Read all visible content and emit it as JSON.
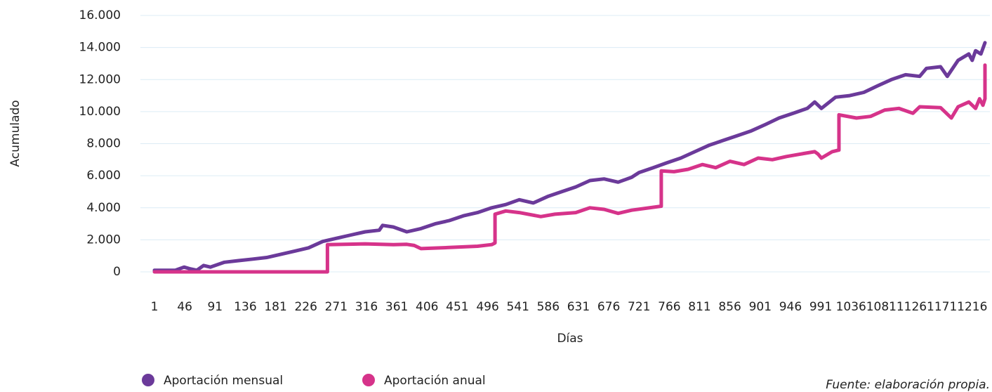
{
  "chart_data": {
    "type": "line",
    "y_label": "Acumulado",
    "x_label": "Días",
    "source": "Fuente: elaboración propia.",
    "xlim": [
      1,
      1235
    ],
    "xticks": [
      1,
      46,
      91,
      136,
      181,
      226,
      271,
      316,
      361,
      406,
      451,
      496,
      541,
      586,
      631,
      676,
      721,
      766,
      811,
      856,
      901,
      946,
      991,
      1036,
      1081,
      1126,
      1171,
      1216
    ],
    "ylim": [
      0,
      16000
    ],
    "yticks": [
      0,
      {
        "value": 2000,
        "label": "2.000"
      },
      {
        "value": 4000,
        "label": "4.000"
      },
      {
        "value": 6000,
        "label": "6.000"
      },
      {
        "value": 8000,
        "label": "8.000"
      },
      {
        "value": 10000,
        "label": "10.000"
      },
      {
        "value": 12000,
        "label": "12.000"
      },
      {
        "value": 14000,
        "label": "14.000"
      },
      {
        "value": 16000,
        "label": "16.000"
      }
    ],
    "grid": true,
    "legend": "bottom-left",
    "series": [
      {
        "name": "Aportación mensual",
        "color": "#6b3a9a",
        "x": [
          1,
          32,
          45,
          53,
          64,
          74,
          84,
          105,
          126,
          147,
          168,
          189,
          210,
          230,
          251,
          272,
          293,
          314,
          335,
          340,
          356,
          376,
          397,
          418,
          439,
          460,
          481,
          502,
          523,
          543,
          564,
          585,
          606,
          627,
          648,
          669,
          690,
          710,
          721,
          742,
          762,
          783,
          804,
          825,
          846,
          867,
          888,
          909,
          929,
          950,
          971,
          982,
          992,
          1013,
          1034,
          1055,
          1075,
          1096,
          1117,
          1138,
          1148,
          1169,
          1179,
          1195,
          1211,
          1216,
          1221,
          1229,
          1235
        ],
        "values": [
          100,
          100,
          300,
          200,
          100,
          400,
          300,
          600,
          700,
          800,
          900,
          1100,
          1300,
          1500,
          1900,
          2100,
          2300,
          2500,
          2600,
          2900,
          2800,
          2500,
          2700,
          3000,
          3200,
          3500,
          3700,
          4000,
          4200,
          4500,
          4300,
          4700,
          5000,
          5300,
          5700,
          5800,
          5600,
          5900,
          6200,
          6500,
          6800,
          7100,
          7500,
          7900,
          8200,
          8500,
          8800,
          9200,
          9600,
          9900,
          10200,
          10600,
          10200,
          10900,
          11000,
          11200,
          11600,
          12000,
          12300,
          12200,
          12700,
          12800,
          12200,
          13200,
          13600,
          13200,
          13800,
          13600,
          14300
        ]
      },
      {
        "name": "Aportación anual",
        "color": "#d6338a",
        "x": [
          1,
          258,
          258,
          314,
          356,
          376,
          387,
          397,
          439,
          481,
          502,
          507,
          507,
          523,
          543,
          575,
          596,
          627,
          648,
          669,
          690,
          710,
          754,
          754,
          773,
          794,
          815,
          835,
          856,
          877,
          898,
          919,
          940,
          961,
          982,
          987,
          992,
          1008,
          1018,
          1018,
          1044,
          1065,
          1086,
          1107,
          1128,
          1138,
          1169,
          1185,
          1195,
          1211,
          1221,
          1227,
          1232,
          1235,
          1235
        ],
        "values": [
          0,
          0,
          1700,
          1750,
          1700,
          1720,
          1650,
          1450,
          1520,
          1600,
          1700,
          1800,
          3600,
          3800,
          3700,
          3450,
          3600,
          3700,
          4000,
          3900,
          3650,
          3850,
          4100,
          6300,
          6250,
          6400,
          6700,
          6500,
          6900,
          6700,
          7100,
          7000,
          7200,
          7350,
          7500,
          7350,
          7100,
          7500,
          7600,
          9800,
          9600,
          9700,
          10100,
          10200,
          9900,
          10300,
          10250,
          9600,
          10300,
          10600,
          10200,
          10800,
          10400,
          10800,
          12900
        ]
      }
    ]
  }
}
